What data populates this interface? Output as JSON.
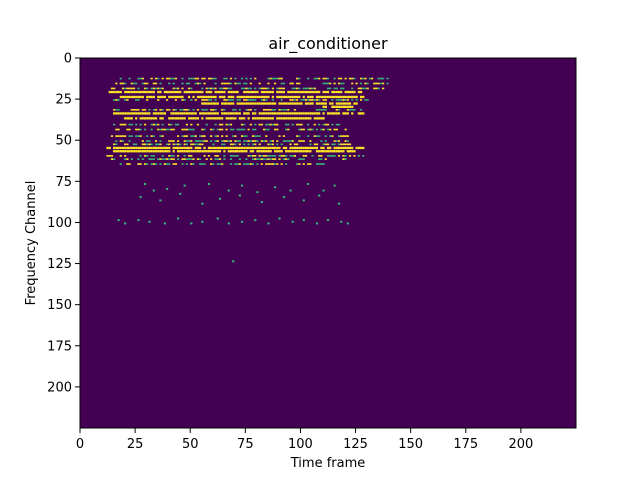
{
  "chart_data": {
    "type": "heatmap",
    "title": "air_conditioner",
    "xlabel": "Time frame",
    "ylabel": "Frequency Channel",
    "xlim": [
      0,
      225
    ],
    "ylim": [
      225,
      0
    ],
    "x_ticks": [
      0,
      25,
      50,
      75,
      100,
      125,
      150,
      175,
      200
    ],
    "y_ticks": [
      0,
      25,
      50,
      75,
      100,
      125,
      150,
      175,
      200
    ],
    "colormap": "viridis",
    "background_color": "#440154",
    "sparse_color": "#35b779",
    "dense_color": "#fde725",
    "grid": false,
    "dense_bands": [
      {
        "y": 20,
        "x_start": 13,
        "x_end": 127
      },
      {
        "y": 23,
        "x_start": 18,
        "x_end": 128
      },
      {
        "y": 27,
        "x_start": 55,
        "x_end": 125
      },
      {
        "y": 29,
        "x_start": 110,
        "x_end": 125
      },
      {
        "y": 33,
        "x_start": 15,
        "x_end": 128
      },
      {
        "y": 36,
        "x_start": 20,
        "x_end": 110
      },
      {
        "y": 54,
        "x_start": 12,
        "x_end": 128
      },
      {
        "y": 56,
        "x_start": 15,
        "x_end": 125
      }
    ],
    "medium_bands": [
      {
        "y": 12,
        "x_start": 17,
        "x_end": 140
      },
      {
        "y": 15,
        "x_start": 16,
        "x_end": 140
      },
      {
        "y": 18,
        "x_start": 14,
        "x_end": 138
      },
      {
        "y": 25,
        "x_start": 14,
        "x_end": 130
      },
      {
        "y": 31,
        "x_start": 14,
        "x_end": 127
      },
      {
        "y": 40,
        "x_start": 14,
        "x_end": 118
      },
      {
        "y": 43,
        "x_start": 15,
        "x_end": 120
      },
      {
        "y": 47,
        "x_start": 14,
        "x_end": 122
      },
      {
        "y": 50,
        "x_start": 13,
        "x_end": 125
      },
      {
        "y": 52,
        "x_start": 15,
        "x_end": 124
      },
      {
        "y": 59,
        "x_start": 12,
        "x_end": 130
      },
      {
        "y": 61,
        "x_start": 14,
        "x_end": 120
      },
      {
        "y": 64,
        "x_start": 18,
        "x_end": 112
      }
    ],
    "scattered_points": [
      [
        29,
        76
      ],
      [
        33,
        80
      ],
      [
        39,
        79
      ],
      [
        47,
        77
      ],
      [
        58,
        76
      ],
      [
        67,
        80
      ],
      [
        73,
        77
      ],
      [
        80,
        81
      ],
      [
        88,
        78
      ],
      [
        95,
        80
      ],
      [
        103,
        76
      ],
      [
        110,
        80
      ],
      [
        115,
        77
      ],
      [
        27,
        84
      ],
      [
        36,
        86
      ],
      [
        45,
        82
      ],
      [
        55,
        88
      ],
      [
        63,
        85
      ],
      [
        72,
        83
      ],
      [
        82,
        87
      ],
      [
        92,
        84
      ],
      [
        101,
        86
      ],
      [
        108,
        83
      ],
      [
        117,
        88
      ],
      [
        17,
        98
      ],
      [
        20,
        100
      ],
      [
        26,
        98
      ],
      [
        31,
        99
      ],
      [
        38,
        100
      ],
      [
        44,
        97
      ],
      [
        50,
        100
      ],
      [
        55,
        99
      ],
      [
        62,
        97
      ],
      [
        67,
        100
      ],
      [
        73,
        99
      ],
      [
        79,
        98
      ],
      [
        85,
        100
      ],
      [
        90,
        97
      ],
      [
        96,
        99
      ],
      [
        101,
        98
      ],
      [
        107,
        100
      ],
      [
        112,
        98
      ],
      [
        118,
        99
      ],
      [
        121,
        100
      ],
      [
        69,
        123
      ]
    ]
  }
}
